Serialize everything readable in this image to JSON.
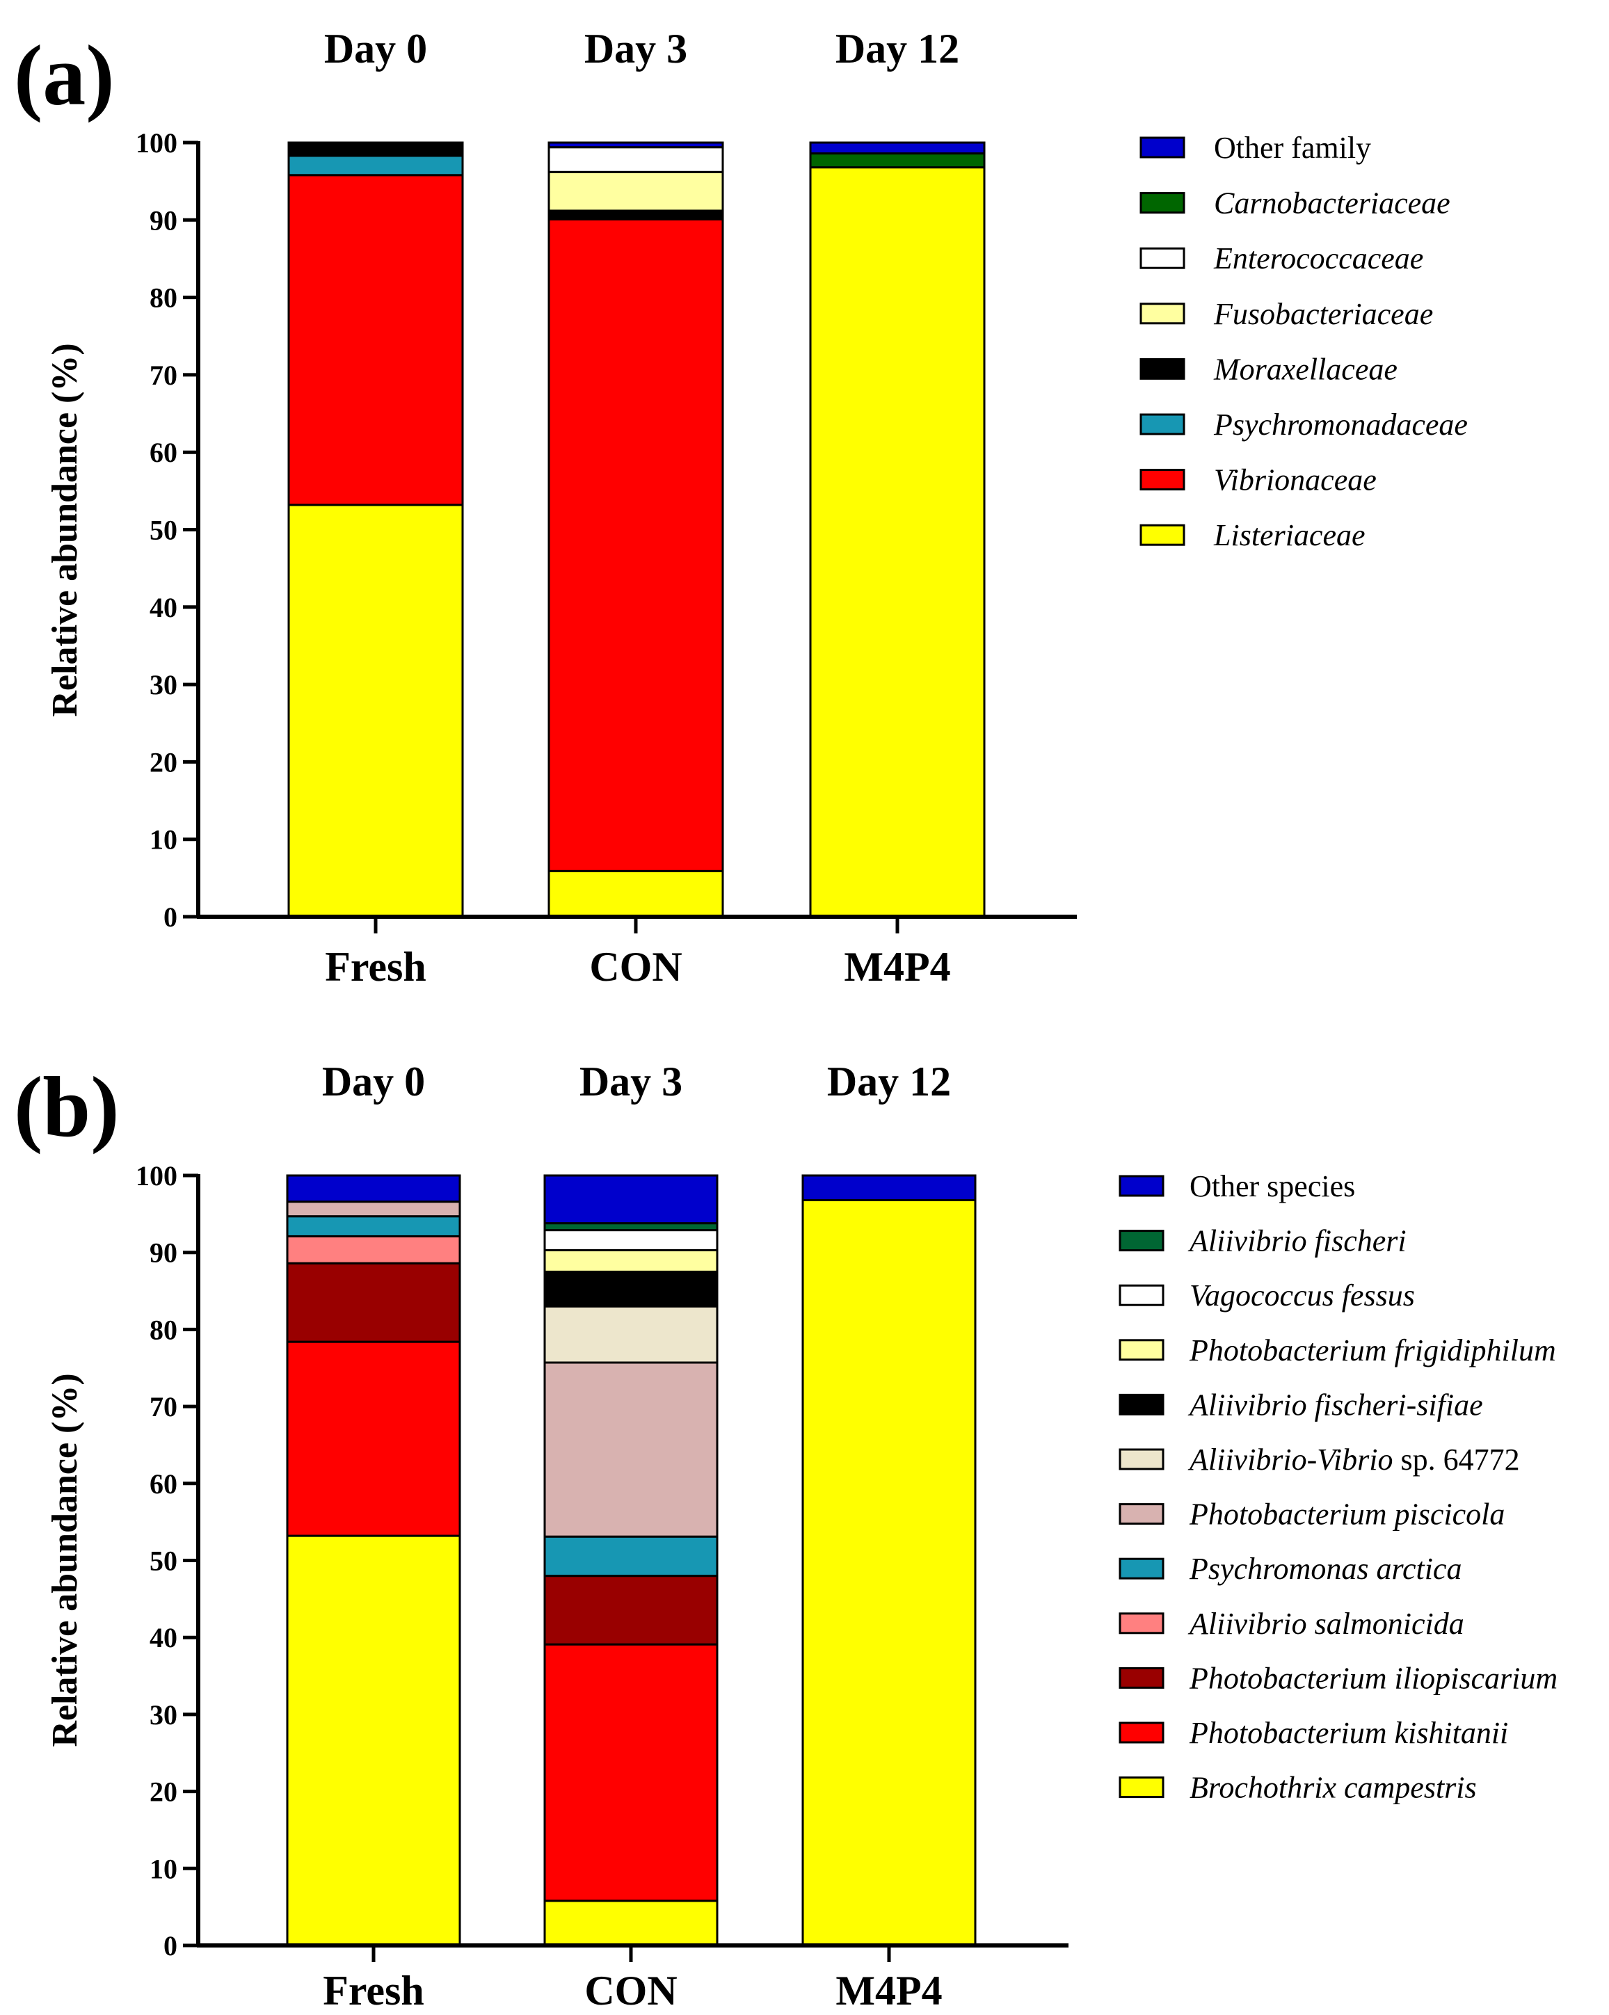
{
  "chart_data": [
    {
      "type": "bar",
      "stacked": true,
      "panel_label": "(a)",
      "ylabel": "Relative abundance (%)",
      "ylim": [
        0,
        100
      ],
      "yticks": [
        0,
        10,
        20,
        30,
        40,
        50,
        60,
        70,
        80,
        90,
        100
      ],
      "categories": [
        "Fresh",
        "CON",
        "M4P4"
      ],
      "day_labels": [
        "Day 0",
        "Day 3",
        "Day 12"
      ],
      "legend_placement": "right",
      "series": [
        {
          "name": "Listeriaceae",
          "italic": true,
          "color": "#FFFF00",
          "values": [
            53.2,
            5.9,
            96.8
          ]
        },
        {
          "name": "Vibrionaceae",
          "italic": true,
          "color": "#FF0000",
          "values": [
            42.6,
            84.2,
            0.0
          ]
        },
        {
          "name": "Psychromonadaceae",
          "italic": true,
          "color": "#1797B3",
          "values": [
            2.5,
            0.0,
            0.0
          ]
        },
        {
          "name": "Moraxellaceae",
          "italic": true,
          "color": "#000000",
          "values": [
            1.5,
            1.1,
            0.0
          ]
        },
        {
          "name": "Fusobacteriaceae",
          "italic": true,
          "color": "#FFFFA0",
          "values": [
            0.0,
            5.0,
            0.0
          ]
        },
        {
          "name": "Enterococcaceae",
          "italic": true,
          "color": "#FFFFFF",
          "values": [
            0.0,
            3.2,
            0.0
          ]
        },
        {
          "name": "Carnobacteriaceae",
          "italic": true,
          "color": "#006600",
          "values": [
            0.0,
            0.0,
            1.8
          ]
        },
        {
          "name": "Other family",
          "italic": false,
          "color": "#0000CC",
          "values": [
            0.2,
            0.6,
            1.4
          ]
        }
      ]
    },
    {
      "type": "bar",
      "stacked": true,
      "panel_label": "(b)",
      "ylabel": "Relative abundance (%)",
      "ylim": [
        0,
        100
      ],
      "yticks": [
        0,
        10,
        20,
        30,
        40,
        50,
        60,
        70,
        80,
        90,
        100
      ],
      "categories": [
        "Fresh",
        "CON",
        "M4P4"
      ],
      "day_labels": [
        "Day 0",
        "Day 3",
        "Day 12"
      ],
      "legend_placement": "right",
      "series": [
        {
          "name": "Brochothrix campestris",
          "italic": true,
          "color": "#FFFF00",
          "values": [
            53.2,
            5.8,
            96.8
          ]
        },
        {
          "name": "Photobacterium kishitanii",
          "italic": true,
          "color": "#FF0000",
          "values": [
            25.2,
            33.3,
            0.0
          ]
        },
        {
          "name": "Photobacterium iliopiscarium",
          "italic": true,
          "color": "#990000",
          "values": [
            10.2,
            8.9,
            0.0
          ]
        },
        {
          "name": "Aliivibrio salmonicida",
          "italic": true,
          "color": "#FF8080",
          "values": [
            3.5,
            0.0,
            0.0
          ]
        },
        {
          "name": "Psychromonas arctica",
          "italic": true,
          "color": "#1797B3",
          "values": [
            2.6,
            5.1,
            0.0
          ]
        },
        {
          "name": "Photobacterium piscicola",
          "italic": true,
          "color": "#D8B2B0",
          "values": [
            1.9,
            22.6,
            0.0
          ]
        },
        {
          "name": "Aliivibrio-Vibrio sp. 64772",
          "italic": false,
          "color": "#EDE6CC",
          "values": [
            0.0,
            7.3,
            0.0
          ]
        },
        {
          "name": "Aliivibrio fischeri-sifiae",
          "italic": true,
          "color": "#000000",
          "values": [
            0.0,
            4.5,
            0.0
          ]
        },
        {
          "name": "Photobacterium frigidiphilum",
          "italic": true,
          "color": "#FFFFA0",
          "values": [
            0.0,
            2.8,
            0.0
          ]
        },
        {
          "name": "Vagococcus fessus",
          "italic": true,
          "color": "#FFFFFF",
          "values": [
            0.0,
            2.6,
            0.0
          ]
        },
        {
          "name": "Aliivibrio fischeri",
          "italic": true,
          "color": "#006633",
          "values": [
            0.0,
            0.9,
            0.0
          ]
        },
        {
          "name": "Other species",
          "italic": false,
          "color": "#0000CC",
          "values": [
            3.4,
            6.2,
            3.2
          ]
        }
      ]
    }
  ]
}
